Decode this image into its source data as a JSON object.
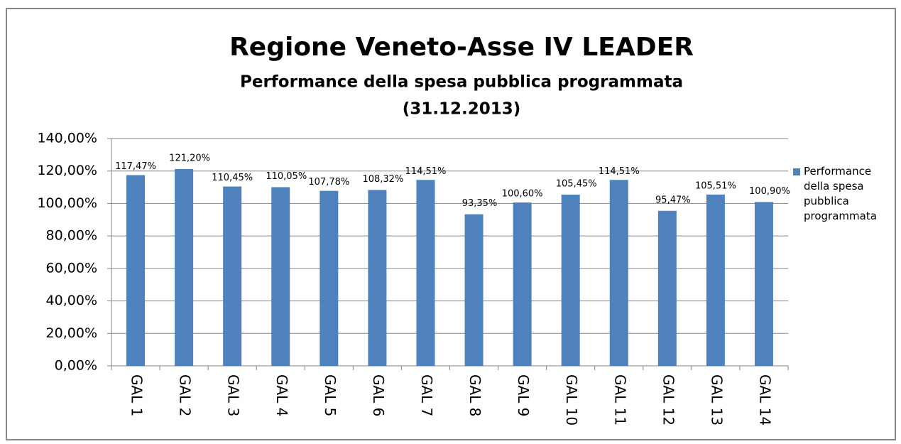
{
  "chart_data": {
    "type": "bar",
    "title": "Regione Veneto-Asse IV LEADER",
    "subtitle": [
      "Performance della spesa pubblica programmata",
      "(31.12.2013)"
    ],
    "categories": [
      "GAL 1",
      "GAL 2",
      "GAL 3",
      "GAL 4",
      "GAL 5",
      "GAL 6",
      "GAL 7",
      "GAL 8",
      "GAL 9",
      "GAL 10",
      "GAL 11",
      "GAL 12",
      "GAL 13",
      "GAL 14"
    ],
    "series": [
      {
        "name": "Performance della spesa pubblica programmata",
        "color": "#4f81bd",
        "values": [
          117.47,
          121.2,
          110.45,
          110.05,
          107.78,
          108.32,
          114.51,
          93.35,
          100.6,
          105.45,
          114.51,
          95.47,
          105.51,
          100.9
        ],
        "value_labels": [
          "117,47%",
          "121,20%",
          "110,45%",
          "110,05%",
          "107,78%",
          "108,32%",
          "114,51%",
          "93,35%",
          "100,60%",
          "105,45%",
          "114,51%",
          "95,47%",
          "105,51%",
          "100,90%"
        ]
      }
    ],
    "ylim": [
      0,
      140
    ],
    "yticks": [
      {
        "value": 0,
        "label": "0,00%"
      },
      {
        "value": 20,
        "label": "20,00%"
      },
      {
        "value": 40,
        "label": "40,00%"
      },
      {
        "value": 60,
        "label": "60,00%"
      },
      {
        "value": 80,
        "label": "80,00%"
      },
      {
        "value": 100,
        "label": "100,00%"
      },
      {
        "value": 120,
        "label": "120,00%"
      },
      {
        "value": 140,
        "label": "140,00%"
      }
    ],
    "grid": true,
    "legend": "right"
  }
}
